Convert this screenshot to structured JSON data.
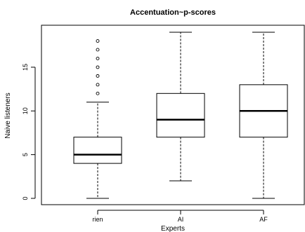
{
  "chart_data": {
    "type": "box",
    "title": "Accentuation~p-scores",
    "xlabel": "Experts",
    "ylabel": "Naive listeners",
    "categories": [
      "rien",
      "AI",
      "AF"
    ],
    "ylim": [
      0,
      19
    ],
    "yticks": [
      0,
      5,
      10,
      15
    ],
    "grid": false,
    "boxes": [
      {
        "category": "rien",
        "min": 0,
        "q1": 4,
        "median": 5,
        "q3": 7,
        "max": 11,
        "outliers": [
          12,
          13,
          14,
          15,
          16,
          17,
          18
        ]
      },
      {
        "category": "AI",
        "min": 2,
        "q1": 7,
        "median": 9,
        "q3": 12,
        "max": 19,
        "outliers": []
      },
      {
        "category": "AF",
        "min": 0,
        "q1": 7,
        "median": 10,
        "q3": 13,
        "max": 19,
        "outliers": []
      }
    ]
  }
}
